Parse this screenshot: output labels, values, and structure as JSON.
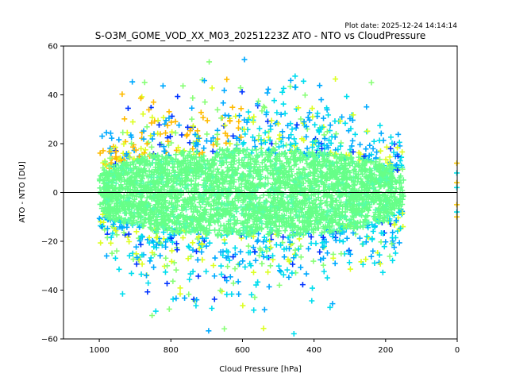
{
  "chart_data": {
    "type": "scatter",
    "title": "S-O3M_GOME_VOD_XX_M03_20251223Z ATO - NTO vs CloudPressure",
    "subtitle": "Plot date: 2025-12-24 14:14:14",
    "xlabel": "Cloud Pressure [hPa]",
    "ylabel": "ATO - NTO [DU]",
    "xlim": [
      1100,
      0
    ],
    "ylim": [
      -60,
      60
    ],
    "x_inverted": true,
    "xticks": [
      1000,
      800,
      600,
      400,
      200,
      0
    ],
    "yticks": [
      60,
      40,
      20,
      0,
      -20,
      -40,
      -60
    ],
    "xtick_labels": [
      "1000",
      "800",
      "600",
      "400",
      "200",
      "0"
    ],
    "ytick_labels": [
      "60",
      "40",
      "20",
      "0",
      "−20",
      "−40",
      "−60"
    ],
    "reference_line": {
      "y": 0,
      "color": "#000000"
    },
    "marker": "+",
    "colormap": "jet-like (blue → cyan → green → yellow → orange)",
    "grid": false,
    "legend": "none",
    "distribution": {
      "x_range": [
        150,
        1000
      ],
      "dense_core_y_range": [
        -20,
        20
      ],
      "outlier_y_range": [
        -60,
        60
      ],
      "isolated_points_near_x0": [
        12,
        8,
        4,
        2,
        -5,
        -8,
        -10
      ],
      "core_color": "#66ff88",
      "edge_colors": [
        "#00ddee",
        "#00aaff",
        "#ddff22",
        "#ffcc00",
        "#0033ff"
      ]
    }
  }
}
